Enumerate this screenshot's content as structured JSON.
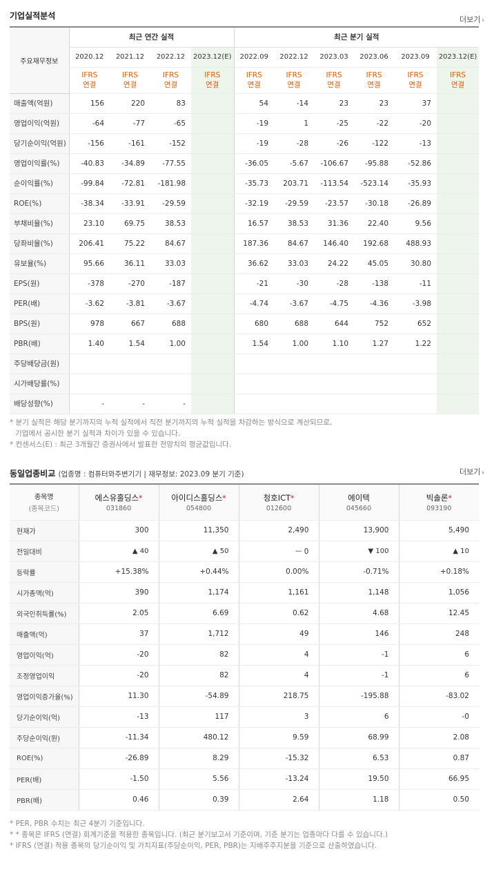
{
  "section1": {
    "title": "기업실적분석",
    "more": "더보기",
    "row_header": "주요재무정보",
    "group_annual": "최근 연간 실적",
    "group_quarter": "최근 분기 실적",
    "periods": [
      "2020.12",
      "2021.12",
      "2022.12",
      "2023.12(E)",
      "2022.09",
      "2022.12",
      "2023.03",
      "2023.06",
      "2023.09",
      "2023.12(E)"
    ],
    "ifrs_top": "IFRS",
    "ifrs_bottom": "연결",
    "rows": [
      {
        "label": "매출액(억원)",
        "values": [
          "156",
          "220",
          "83",
          "",
          "54",
          "-14",
          "23",
          "23",
          "37",
          ""
        ]
      },
      {
        "label": "영업이익(억원)",
        "values": [
          "-64",
          "-77",
          "-65",
          "",
          "-19",
          "1",
          "-25",
          "-22",
          "-20",
          ""
        ]
      },
      {
        "label": "당기순이익(억원)",
        "values": [
          "-156",
          "-161",
          "-152",
          "",
          "-19",
          "-28",
          "-26",
          "-122",
          "-13",
          ""
        ]
      },
      {
        "label": "영업이익률(%)",
        "values": [
          "-40.83",
          "-34.89",
          "-77.55",
          "",
          "-36.05",
          "-5.67",
          "-106.67",
          "-95.88",
          "-52.86",
          ""
        ]
      },
      {
        "label": "순이익률(%)",
        "values": [
          "-99.84",
          "-72.81",
          "-181.98",
          "",
          "-35.73",
          "203.71",
          "-113.54",
          "-523.14",
          "-35.93",
          ""
        ]
      },
      {
        "label": "ROE(%)",
        "values": [
          "-38.34",
          "-33.91",
          "-29.59",
          "",
          "-32.19",
          "-29.59",
          "-23.57",
          "-30.18",
          "-26.89",
          ""
        ]
      },
      {
        "label": "부채비율(%)",
        "values": [
          "23.10",
          "69.75",
          "38.53",
          "",
          "16.57",
          "38.53",
          "31.36",
          "22.40",
          "9.56",
          ""
        ]
      },
      {
        "label": "당좌비율(%)",
        "values": [
          "206.41",
          "75.22",
          "84.67",
          "",
          "187.36",
          "84.67",
          "146.40",
          "192.68",
          "488.93",
          ""
        ]
      },
      {
        "label": "유보율(%)",
        "values": [
          "95.66",
          "36.11",
          "33.03",
          "",
          "36.62",
          "33.03",
          "24.22",
          "45.05",
          "30.80",
          ""
        ]
      },
      {
        "label": "EPS(원)",
        "values": [
          "-378",
          "-270",
          "-187",
          "",
          "-21",
          "-30",
          "-28",
          "-138",
          "-11",
          ""
        ]
      },
      {
        "label": "PER(배)",
        "values": [
          "-3.62",
          "-3.81",
          "-3.67",
          "",
          "-4.74",
          "-3.67",
          "-4.75",
          "-4.36",
          "-3.98",
          ""
        ]
      },
      {
        "label": "BPS(원)",
        "values": [
          "978",
          "667",
          "688",
          "",
          "680",
          "688",
          "644",
          "752",
          "652",
          ""
        ]
      },
      {
        "label": "PBR(배)",
        "values": [
          "1.40",
          "1.54",
          "1.00",
          "",
          "1.54",
          "1.00",
          "1.10",
          "1.27",
          "1.22",
          ""
        ]
      },
      {
        "label": "주당배당금(원)",
        "values": [
          "",
          "",
          "",
          "",
          "",
          "",
          "",
          "",
          "",
          ""
        ]
      },
      {
        "label": "시가배당률(%)",
        "values": [
          "",
          "",
          "",
          "",
          "",
          "",
          "",
          "",
          "",
          ""
        ]
      },
      {
        "label": "배당성향(%)",
        "values": [
          "-",
          "-",
          "-",
          "",
          "",
          "",
          "",
          "",
          "",
          ""
        ]
      }
    ],
    "notes": [
      "* 분기 실적은 해당 분기까지의 누적 실적에서 직전 분기까지의 누적 실적을 차감하는 방식으로 계산되므로,",
      "  기업에서 공시한 분기 실적과 차이가 있을 수 있습니다.",
      "* 컨센서스(E) : 최근 3개월간 증권사에서 발표한 전망치의 평균값입니다."
    ]
  },
  "section2": {
    "title": "동일업종비교",
    "subtitle": "(업종명 : 컴퓨터와주변기기 | 재무정보: 2023.09 분기 기준)",
    "more": "더보기",
    "header_label": "종목명",
    "header_sub": "(종목코드)",
    "companies": [
      {
        "name": "에스유홀딩스",
        "star": "*",
        "code": "031860"
      },
      {
        "name": "아이디스홀딩스",
        "star": "*",
        "code": "054800"
      },
      {
        "name": "청호ICT",
        "star": "*",
        "code": "012600"
      },
      {
        "name": "에이텍",
        "star": "",
        "code": "045660"
      },
      {
        "name": "빅솔론",
        "star": "*",
        "code": "093190"
      }
    ],
    "rows": [
      {
        "label": "현재가",
        "values": [
          "300",
          "11,350",
          "2,490",
          "13,900",
          "5,490"
        ]
      },
      {
        "label": "전일대비",
        "values": [
          "▲ 40",
          "▲ 50",
          "ㅡ 0",
          "▼ 100",
          "▲ 10"
        ]
      },
      {
        "label": "등락률",
        "values": [
          "+15.38%",
          "+0.44%",
          "0.00%",
          "-0.71%",
          "+0.18%"
        ]
      },
      {
        "label": "시가총액(억)",
        "values": [
          "390",
          "1,174",
          "1,161",
          "1,148",
          "1,056"
        ]
      },
      {
        "label": "외국인취득률(%)",
        "values": [
          "2.05",
          "6.69",
          "0.62",
          "4.68",
          "12.45"
        ]
      },
      {
        "label": "매출액(억)",
        "values": [
          "37",
          "1,712",
          "49",
          "146",
          "248"
        ]
      },
      {
        "label": "영업이익(억)",
        "values": [
          "-20",
          "82",
          "4",
          "-1",
          "6"
        ]
      },
      {
        "label": "조정영업이익",
        "values": [
          "-20",
          "82",
          "4",
          "-1",
          "6"
        ]
      },
      {
        "label": "영업이익증가율(%)",
        "values": [
          "11.30",
          "-54.89",
          "218.75",
          "-195.88",
          "-83.02"
        ]
      },
      {
        "label": "당기순이익(억)",
        "values": [
          "-13",
          "117",
          "3",
          "6",
          "-0"
        ]
      },
      {
        "label": "주당순이익(원)",
        "values": [
          "-11.34",
          "480.12",
          "9.59",
          "68.99",
          "2.08"
        ]
      },
      {
        "label": "ROE(%)",
        "values": [
          "-26.89",
          "8.29",
          "-15.32",
          "6.53",
          "0.87"
        ]
      },
      {
        "label": "PER(배)",
        "values": [
          "-1.50",
          "5.56",
          "-13.24",
          "19.50",
          "66.95"
        ]
      },
      {
        "label": "PBR(배)",
        "values": [
          "0.46",
          "0.39",
          "2.64",
          "1.18",
          "0.50"
        ]
      }
    ],
    "notes": [
      "* PER, PBR 수치는 최근 4분기 기준입니다.",
      "* * 종목은 IFRS (연결) 회계기준을 적용한 종목입니다. (최근 분기보고서 기준이며, 기준 분기는 업종마다 다를 수 있습니다.)",
      "* IFRS (연결) 적용 종목의 당기순이익 및 가치지표(주당순이익, PER, PBR)는 지배주주지분을 기준으로 산출하였습니다."
    ]
  }
}
